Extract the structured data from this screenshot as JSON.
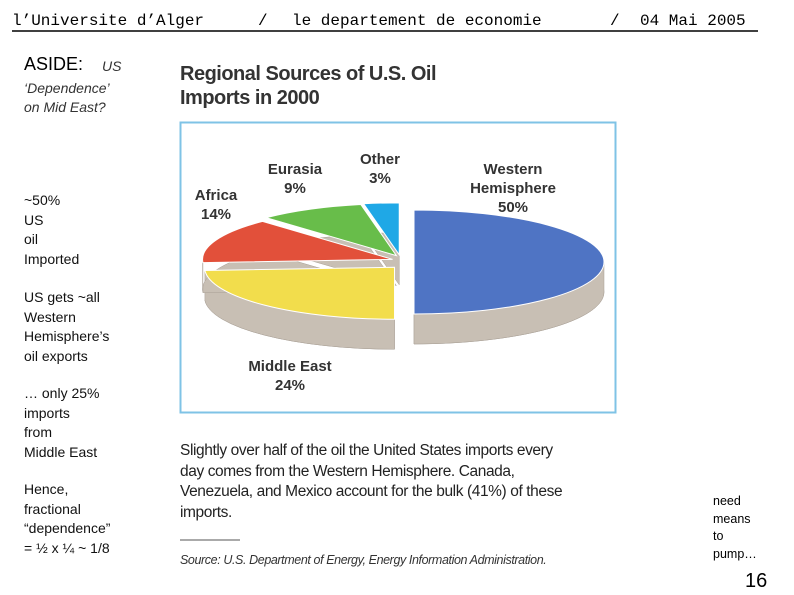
{
  "header": {
    "items": [
      "l’Universite d’Alger",
      "/",
      "le departement de economie",
      "/",
      "04 Mai 2005"
    ]
  },
  "aside": {
    "label": "ASIDE:",
    "question": [
      "US",
      "‘Dependence’",
      "on Mid East?"
    ],
    "points": [
      [
        "~50%",
        "US",
        "oil",
        "Imported"
      ],
      [
        "US gets ~all",
        "Western",
        "Hemisphere’s",
        "oil exports"
      ],
      [
        "… only 25%",
        "imports",
        "from",
        "Middle East"
      ],
      [
        "Hence,",
        "fractional",
        "“dependence”",
        "= ½ x ¼ ~ 1/8"
      ]
    ]
  },
  "chart_data": {
    "type": "pie",
    "title": "Regional Sources of U.S. Oil Imports in 2000",
    "categories": [
      "Western Hemisphere",
      "Middle East",
      "Africa",
      "Eurasia",
      "Other"
    ],
    "values": [
      50,
      24,
      14,
      9,
      3
    ],
    "value_labels": [
      "50%",
      "24%",
      "14%",
      "9%",
      "3%"
    ],
    "colors": [
      "#4f74c4",
      "#f2dd4c",
      "#e2503a",
      "#68bd4a",
      "#1fa8e6"
    ]
  },
  "caption": {
    "lines": [
      "Slightly over half of the oil the United States imports every",
      "day comes from the Western Hemisphere. Canada,",
      "Venezuela, and Mexico account for the bulk (41%) of these",
      "imports."
    ],
    "source": "Source: U.S. Department of Energy, Energy Information Administration."
  },
  "note": [
    "need",
    "means",
    "to",
    "pump…"
  ],
  "page_number": "16"
}
